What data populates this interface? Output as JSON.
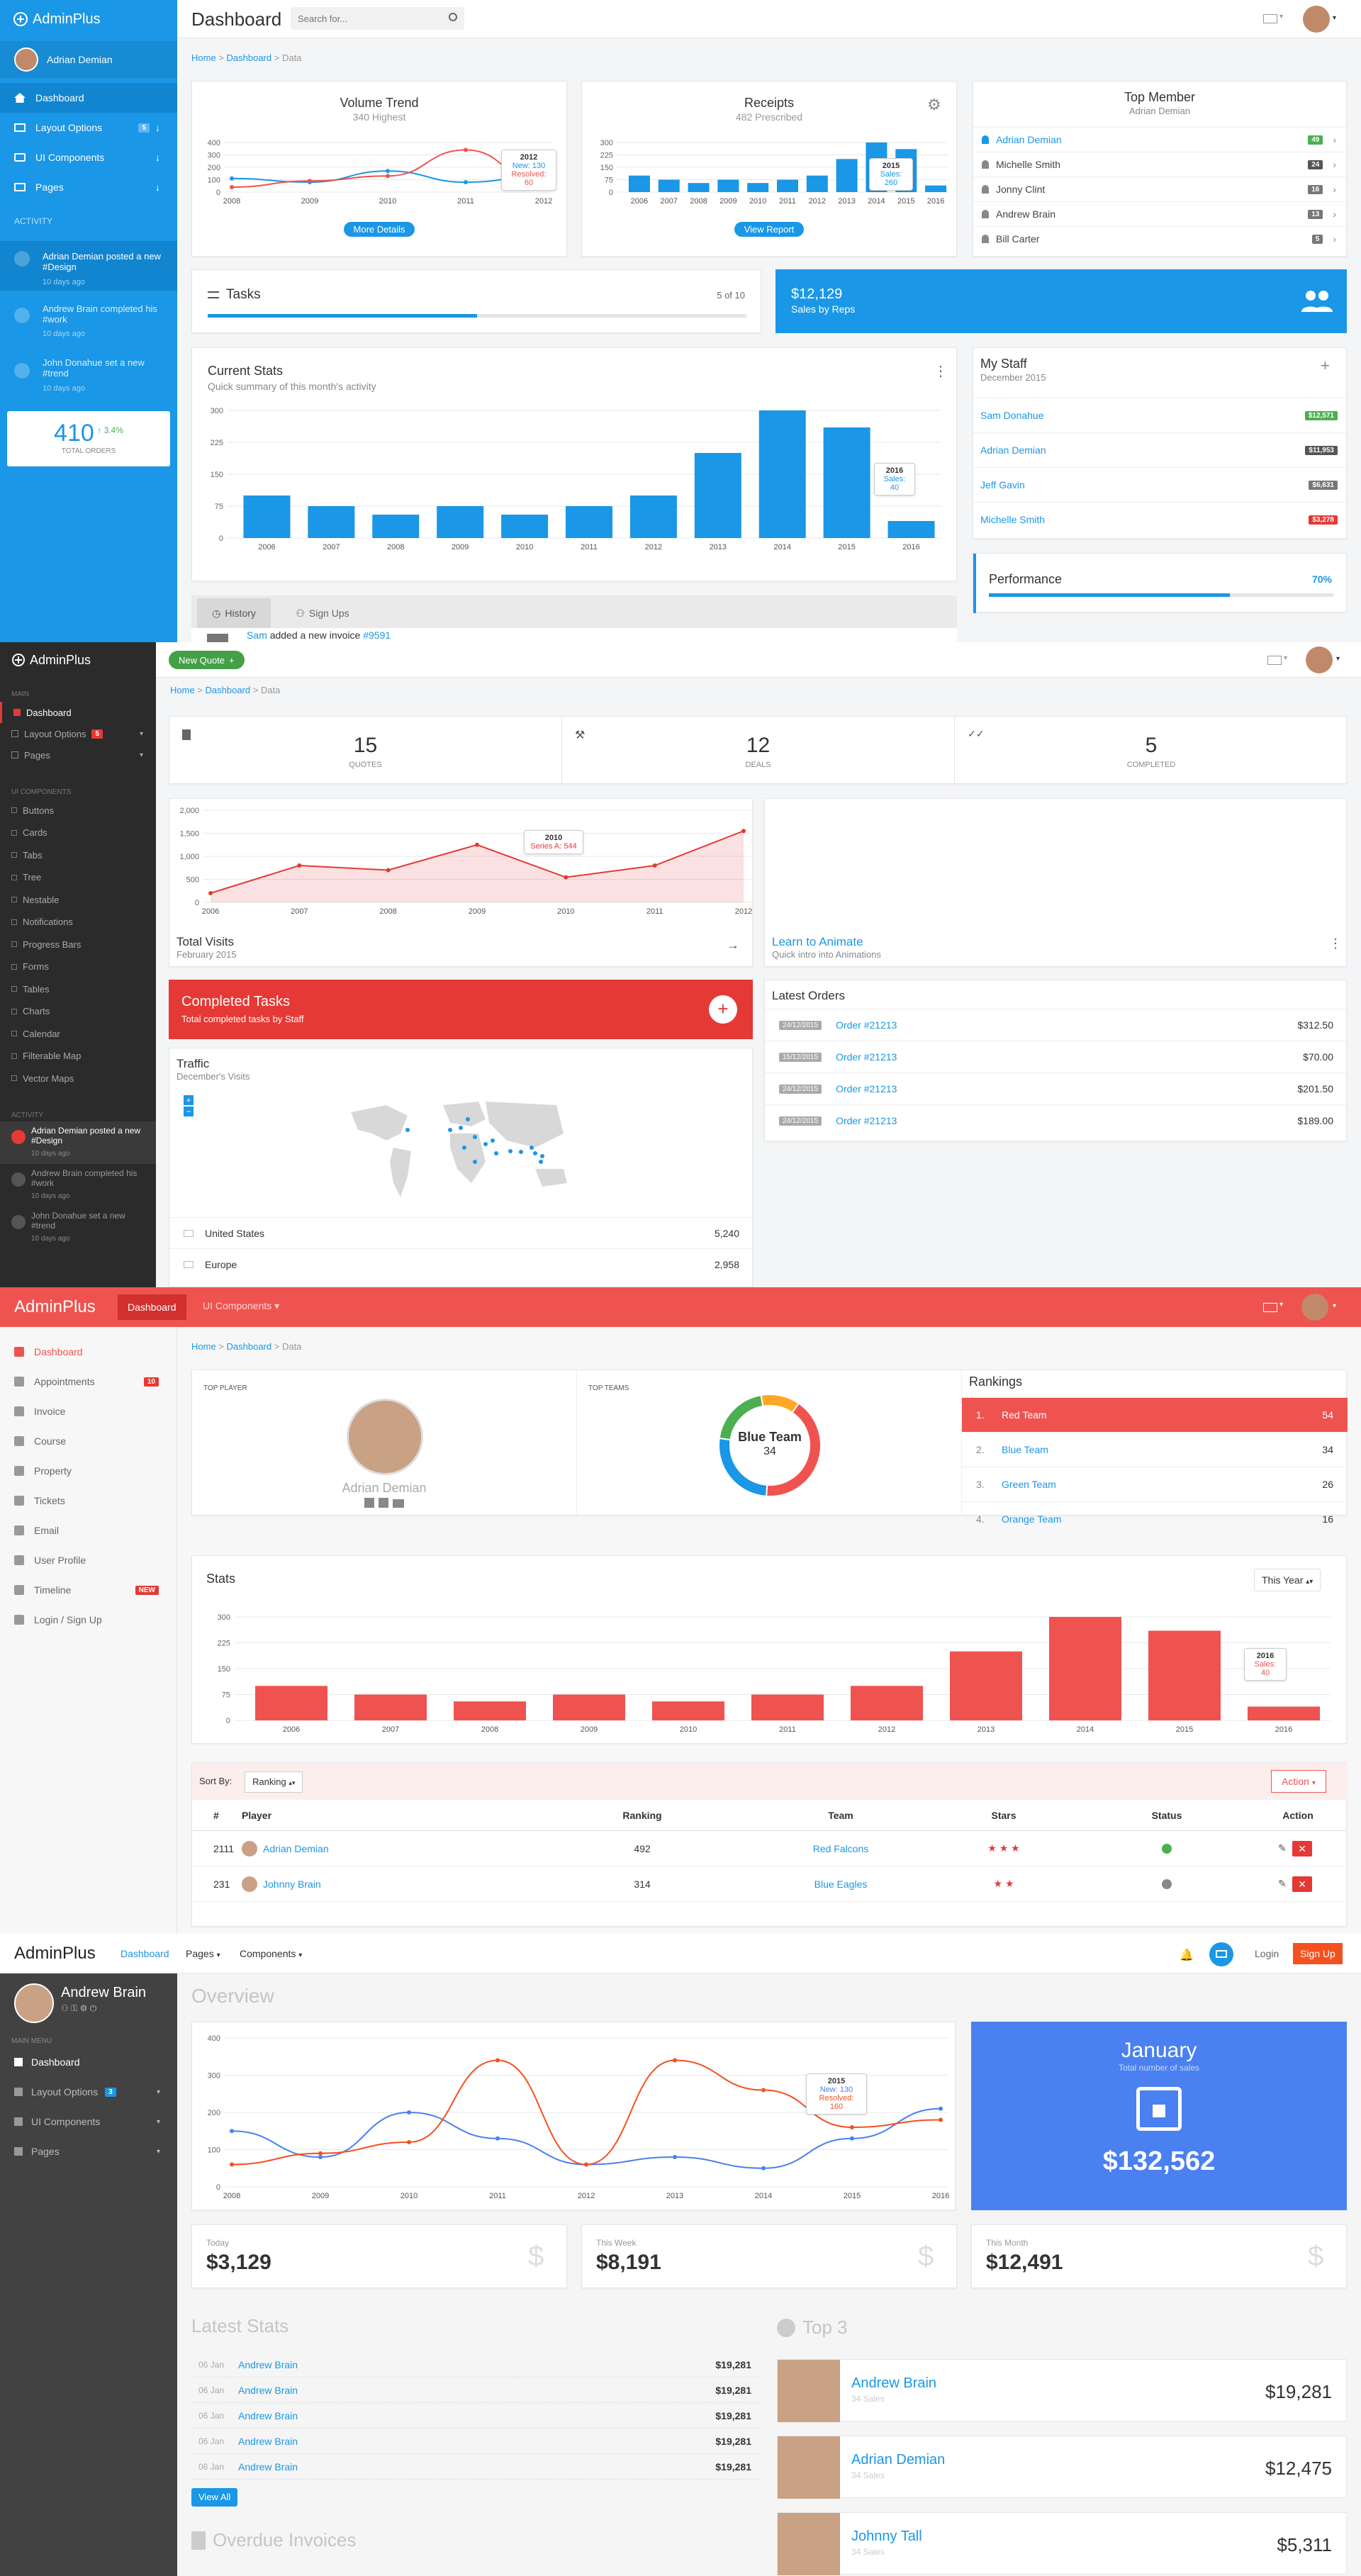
{
  "brand": "AdminPlus",
  "colors": {
    "primary": "#1a97e6",
    "red": "#ef5350",
    "green": "#4caf50",
    "dark": "#2b2b2b"
  },
  "p1": {
    "title": "Dashboard",
    "search_placeholder": "Search for...",
    "user": "Adrian Demian",
    "breadcrumb": [
      "Home",
      "Dashboard",
      "Data"
    ],
    "nav": [
      {
        "label": "Dashboard"
      },
      {
        "label": "Layout Options",
        "badge": "5"
      },
      {
        "label": "UI Components"
      },
      {
        "label": "Pages"
      }
    ],
    "activity_title": "ACTIVITY",
    "activity": [
      {
        "text": "Adrian Demian posted a new #Design",
        "time": "10 days ago"
      },
      {
        "text": "Andrew Brain completed his #work",
        "time": "10 days ago"
      },
      {
        "text": "John Donahue set a new #trend",
        "time": "10 days ago"
      }
    ],
    "orders": {
      "value": "410",
      "change": "3.4%",
      "label": "TOTAL ORDERS"
    },
    "volume": {
      "title": "Volume Trend",
      "subtitle": "340 Highest",
      "button": "More Details",
      "tip_year": "2012",
      "tip_a": "New: 130",
      "tip_b": "Resolved: 60"
    },
    "receipts": {
      "title": "Receipts",
      "subtitle": "482 Prescribed",
      "button": "View Report",
      "tip_year": "2015",
      "tip_a": "Sales: 260"
    },
    "top_member": {
      "title": "Top Member",
      "subtitle": "Adrian Demian",
      "members": [
        {
          "name": "Adrian Demian",
          "score": "49"
        },
        {
          "name": "Michelle Smith",
          "score": "24"
        },
        {
          "name": "Jonny Clint",
          "score": "16"
        },
        {
          "name": "Andrew Brain",
          "score": "13"
        },
        {
          "name": "Bill Carter",
          "score": "5"
        }
      ]
    },
    "tasks": {
      "title": "Tasks",
      "count": "5 of 10",
      "progress": 0.5
    },
    "sales": {
      "value": "$12,129",
      "label": "Sales by Reps"
    },
    "stats": {
      "title": "Current Stats",
      "subtitle": "Quick summary of this month's activity",
      "tip_year": "2016",
      "tip_val": "Sales: 40"
    },
    "staff": {
      "title": "My Staff",
      "subtitle": "December 2015",
      "people": [
        {
          "name": "Sam Donahue",
          "amount": "$12,571",
          "color": "#4caf50"
        },
        {
          "name": "Adrian Demian",
          "amount": "$11,953",
          "color": "#555"
        },
        {
          "name": "Jeff Gavin",
          "amount": "$6,631",
          "color": "#777"
        },
        {
          "name": "Michelle Smith",
          "amount": "$3,278",
          "color": "#e53935"
        }
      ]
    },
    "performance": {
      "label": "Performance",
      "value": "70%",
      "progress": 0.7
    },
    "history": {
      "tab1": "History",
      "tab2": "Sign Ups",
      "entry_name": "Sam",
      "entry_text": "added a new invoice",
      "entry_ref": "#9591"
    }
  },
  "p2": {
    "new_quote": "New Quote",
    "breadcrumb": [
      "Home",
      "Dashboard",
      "Data"
    ],
    "section_main": "MAIN",
    "section_ui": "UI COMPONENTS",
    "section_activity": "ACTIVITY",
    "nav_main": [
      {
        "label": "Dashboard"
      },
      {
        "label": "Layout Options",
        "badge": "5"
      },
      {
        "label": "Pages"
      }
    ],
    "nav_ui": [
      "Buttons",
      "Cards",
      "Tabs",
      "Tree",
      "Nestable",
      "Notifications",
      "Progress Bars",
      "Forms",
      "Tables",
      "Charts",
      "Calendar",
      "Filterable Map",
      "Vector Maps"
    ],
    "activity": [
      {
        "text": "Adrian Demian posted a new #Design",
        "time": "10 days ago"
      },
      {
        "text": "Andrew Brain completed his #work",
        "time": "10 days ago"
      },
      {
        "text": "John Donahue set a new #trend",
        "time": "10 days ago"
      }
    ],
    "counters": [
      {
        "value": "15",
        "label": "QUOTES"
      },
      {
        "value": "12",
        "label": "DEALS"
      },
      {
        "value": "5",
        "label": "COMPLETED"
      }
    ],
    "visits": {
      "title": "Total Visits",
      "subtitle": "February 2015",
      "tip_year": "2010",
      "tip_val": "Series A: 544"
    },
    "animate": {
      "title": "Learn to Animate",
      "subtitle": "Quick intro into Animations"
    },
    "completed": {
      "title": "Completed Tasks",
      "subtitle": "Total completed tasks by Staff"
    },
    "traffic": {
      "title": "Traffic",
      "subtitle": "December's Visits",
      "rows": [
        {
          "label": "United States",
          "value": "5,240"
        },
        {
          "label": "Europe",
          "value": "2,958"
        }
      ]
    },
    "orders": {
      "title": "Latest Orders",
      "rows": [
        {
          "date": "24/12/2015",
          "order": "Order #21213",
          "amount": "$312.50"
        },
        {
          "date": "15/12/2015",
          "order": "Order #21213",
          "amount": "$70.00"
        },
        {
          "date": "24/12/2015",
          "order": "Order #21213",
          "amount": "$201.50"
        },
        {
          "date": "24/12/2015",
          "order": "Order #21213",
          "amount": "$189.00"
        }
      ]
    }
  },
  "p3": {
    "nav_active": "Dashboard",
    "nav_ui": "UI Components",
    "breadcrumb": [
      "Home",
      "Dashboard",
      "Data"
    ],
    "sidebar": [
      {
        "label": "Dashboard"
      },
      {
        "label": "Appointments",
        "badge": "10"
      },
      {
        "label": "Invoice"
      },
      {
        "label": "Course"
      },
      {
        "label": "Property"
      },
      {
        "label": "Tickets"
      },
      {
        "label": "Email"
      },
      {
        "label": "User Profile"
      },
      {
        "label": "Timeline",
        "badge": "NEW"
      },
      {
        "label": "Login / Sign Up"
      }
    ],
    "top_player": {
      "label": "TOP PLAYER",
      "name": "Adrian Demian"
    },
    "top_teams": {
      "label": "TOP TEAMS",
      "team": "Blue Team",
      "value": "34"
    },
    "rankings": {
      "title": "Rankings",
      "rows": [
        {
          "n": "1.",
          "team": "Red Team",
          "score": "54"
        },
        {
          "n": "2.",
          "team": "Blue Team",
          "score": "34"
        },
        {
          "n": "3.",
          "team": "Green Team",
          "score": "26"
        },
        {
          "n": "4.",
          "team": "Orange Team",
          "score": "16"
        }
      ]
    },
    "stats": {
      "title": "Stats",
      "filter": "This Year",
      "tip_year": "2016",
      "tip_val": "Sales: 40"
    },
    "table": {
      "sort_label": "Sort By:",
      "sort_value": "Ranking",
      "action": "Action",
      "headers": [
        "#",
        "Player",
        "Ranking",
        "Team",
        "Stars",
        "Status",
        "Action"
      ],
      "rows": [
        {
          "id": "2111",
          "player": "Adrian Demian",
          "ranking": "492",
          "team": "Red Falcons",
          "stars": "★ ★ ★",
          "status": "#4caf50"
        },
        {
          "id": "231",
          "player": "Johnny Brain",
          "ranking": "314",
          "team": "Blue Eagles",
          "stars": "★ ★",
          "status": "#888"
        }
      ]
    }
  },
  "p4": {
    "nav": [
      "Dashboard",
      "Pages",
      "Components"
    ],
    "login": "Login",
    "signup": "Sign Up",
    "user": "Andrew Brain",
    "main_menu": "MAIN MENU",
    "sidebar": [
      {
        "label": "Dashboard"
      },
      {
        "label": "Layout Options",
        "badge": "3"
      },
      {
        "label": "UI Components"
      },
      {
        "label": "Pages"
      }
    ],
    "overview": "Overview",
    "tip_year": "2015",
    "tip_a": "New: 130",
    "tip_b": "Resolved: 160",
    "january": {
      "title": "January",
      "subtitle": "Total number of sales",
      "value": "$132,562"
    },
    "totals": [
      {
        "label": "Today",
        "value": "$3,129"
      },
      {
        "label": "This Week",
        "value": "$8,191"
      },
      {
        "label": "This Month",
        "value": "$12,491"
      }
    ],
    "latest": {
      "title": "Latest Stats",
      "button": "View All",
      "rows": [
        {
          "date": "06 Jan",
          "name": "Andrew Brain",
          "amount": "$19,281"
        },
        {
          "date": "06 Jan",
          "name": "Andrew Brain",
          "amount": "$19,281"
        },
        {
          "date": "06 Jan",
          "name": "Andrew Brain",
          "amount": "$19,281"
        },
        {
          "date": "06 Jan",
          "name": "Andrew Brain",
          "amount": "$19,281"
        },
        {
          "date": "06 Jan",
          "name": "Andrew Brain",
          "amount": "$19,281"
        }
      ]
    },
    "top3": {
      "title": "Top 3",
      "rows": [
        {
          "name": "Andrew Brain",
          "sub": "34 Sales",
          "amount": "$19,281"
        },
        {
          "name": "Adrian Demian",
          "sub": "34 Sales",
          "amount": "$12,475"
        },
        {
          "name": "Johnny Tall",
          "sub": "34 Sales",
          "amount": "$5,311"
        }
      ]
    },
    "overdue": "Overdue Invoices"
  },
  "chart_data": [
    {
      "type": "line",
      "title": "Volume Trend",
      "x": [
        2008,
        2009,
        2010,
        2011,
        2012
      ],
      "series": [
        {
          "name": "New",
          "values": [
            110,
            80,
            170,
            80,
            130
          ],
          "color": "#1a97e6"
        },
        {
          "name": "Resolved",
          "values": [
            40,
            90,
            130,
            340,
            60
          ],
          "color": "#ef5350"
        }
      ],
      "ylim": [
        0,
        400
      ],
      "yticks": [
        0,
        100,
        200,
        300,
        400
      ]
    },
    {
      "type": "bar",
      "title": "Receipts",
      "categories": [
        "2006",
        "2007",
        "2008",
        "2009",
        "2010",
        "2011",
        "2012",
        "2013",
        "2014",
        "2015",
        "2016"
      ],
      "values": [
        100,
        75,
        55,
        75,
        55,
        75,
        100,
        200,
        300,
        260,
        40
      ],
      "ylim": [
        0,
        300
      ],
      "yticks": [
        0,
        75,
        150,
        225,
        300
      ]
    },
    {
      "type": "bar",
      "title": "Current Stats",
      "categories": [
        "2006",
        "2007",
        "2008",
        "2009",
        "2010",
        "2011",
        "2012",
        "2013",
        "2014",
        "2015",
        "2016"
      ],
      "values": [
        100,
        75,
        55,
        75,
        55,
        75,
        100,
        200,
        300,
        260,
        40
      ],
      "ylim": [
        0,
        300
      ],
      "yticks": [
        0,
        75,
        150,
        225,
        300
      ]
    },
    {
      "type": "area",
      "title": "Total Visits",
      "x": [
        2006,
        2007,
        2008,
        2009,
        2010,
        2011,
        2012
      ],
      "values": [
        200,
        800,
        700,
        1250,
        544,
        800,
        1550
      ],
      "ylim": [
        0,
        2000
      ],
      "yticks": [
        0,
        500,
        1000,
        1500,
        2000
      ],
      "yticklabels": [
        "0",
        "500",
        "1,000",
        "1,500",
        "2,000"
      ]
    },
    {
      "type": "pie",
      "title": "Top Teams",
      "categories": [
        "Red Team",
        "Blue Team",
        "Green Team",
        "Orange Team"
      ],
      "values": [
        54,
        34,
        26,
        16
      ]
    },
    {
      "type": "bar",
      "title": "Stats",
      "categories": [
        "2006",
        "2007",
        "2008",
        "2009",
        "2010",
        "2011",
        "2012",
        "2013",
        "2014",
        "2015",
        "2016"
      ],
      "values": [
        100,
        75,
        55,
        75,
        55,
        75,
        100,
        200,
        300,
        260,
        40
      ],
      "ylim": [
        0,
        300
      ],
      "yticks": [
        0,
        75,
        150,
        225,
        300
      ]
    },
    {
      "type": "line",
      "title": "Overview",
      "x": [
        2008,
        2009,
        2010,
        2011,
        2012,
        2013,
        2014,
        2015,
        2016
      ],
      "series": [
        {
          "name": "New",
          "values": [
            150,
            80,
            200,
            130,
            60,
            80,
            50,
            130,
            210
          ],
          "color": "#4a80f0"
        },
        {
          "name": "Resolved",
          "values": [
            60,
            90,
            120,
            340,
            60,
            340,
            260,
            160,
            180
          ],
          "color": "#f4511e"
        }
      ],
      "ylim": [
        0,
        400
      ],
      "yticks": [
        0,
        100,
        200,
        300,
        400
      ]
    }
  ]
}
